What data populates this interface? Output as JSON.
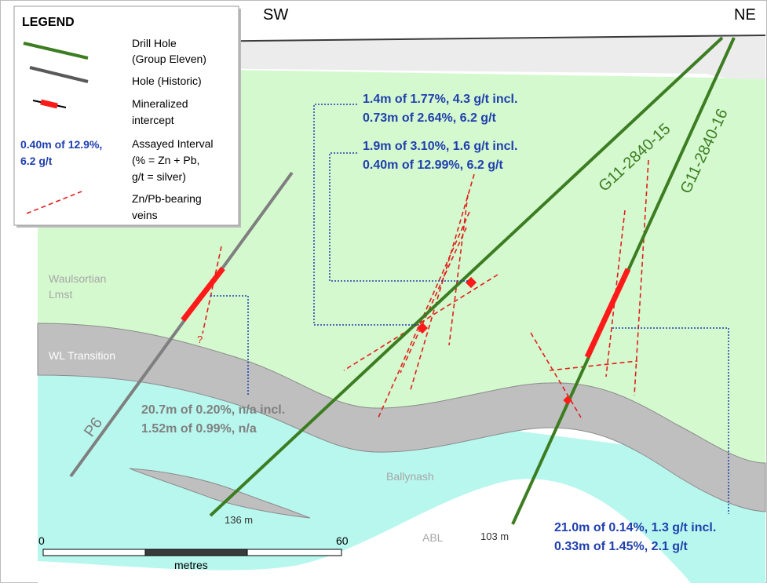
{
  "directions": {
    "left": "SW",
    "right": "NE"
  },
  "legend": {
    "title": "LEGEND",
    "items": [
      {
        "lines": [
          "Drill Hole",
          "(Group Eleven)"
        ]
      },
      {
        "lines": [
          "Hole (Historic)"
        ]
      },
      {
        "lines": [
          "Mineralized",
          "intercept"
        ]
      },
      {
        "sample": [
          "0.40m of 12.9%,",
          "6.2 g/t"
        ],
        "lines": [
          "Assayed Interval",
          "(% = Zn + Pb,",
          "g/t = silver)"
        ]
      },
      {
        "lines": [
          "Zn/Pb-bearing",
          "veins"
        ]
      }
    ]
  },
  "units": {
    "waulsortian": [
      "Waulsortian",
      "Lmst"
    ],
    "transition": "WL Transition",
    "ballynash": "Ballynash",
    "abl": "ABL"
  },
  "holes": {
    "h15": "G11-2840-15",
    "h16": "G11-2840-16",
    "p6": "P6",
    "depth15": "136 m",
    "depth16": "103 m",
    "query": "?"
  },
  "intervals": [
    [
      "1.4m of 1.77%, 4.3 g/t incl.",
      "0.73m of 2.64%, 6.2 g/t"
    ],
    [
      "1.9m of 3.10%, 1.6 g/t incl.",
      "0.40m of 12.99%, 6.2 g/t"
    ],
    [
      "20.7m of 0.20%, n/a incl.",
      "1.52m of 0.99%, n/a"
    ],
    [
      "21.0m of 0.14%, 1.3 g/t incl.",
      "0.33m of 1.45%, 2.1 g/t"
    ]
  ],
  "scale": {
    "start": "0",
    "end": "60",
    "unit": "metres"
  }
}
